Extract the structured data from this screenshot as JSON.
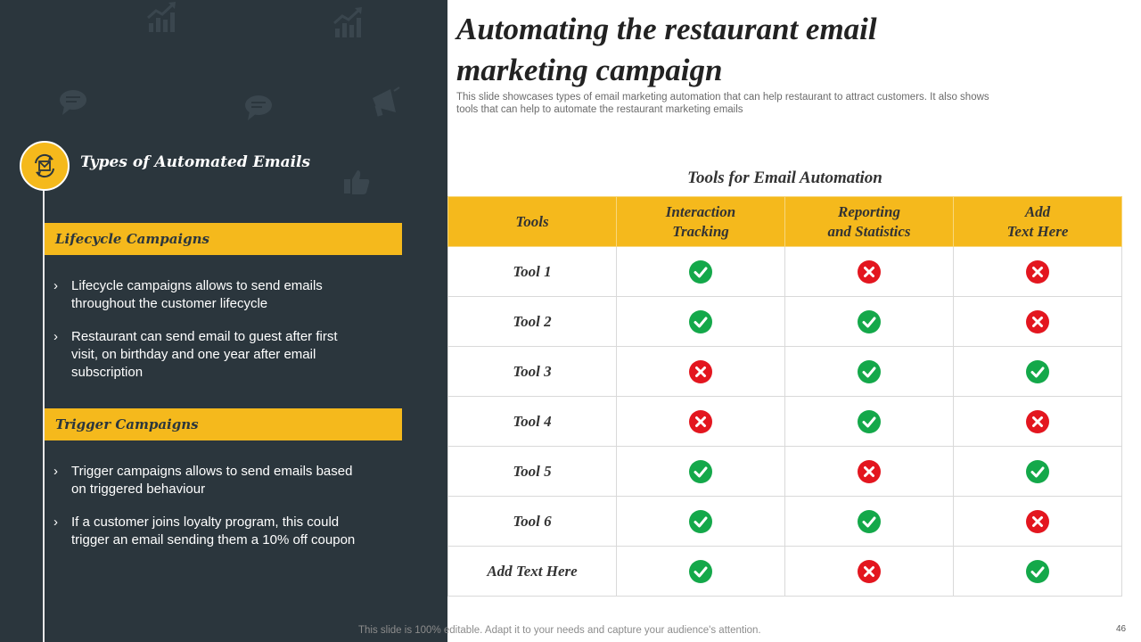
{
  "slide": {
    "title": "Automating the restaurant email marketing campaign",
    "subtitle": "This slide showcases types of email marketing automation that can help restaurant to attract customers. It also shows tools that can help to automate the restaurant marketing emails",
    "footer": "This slide is 100% editable. Adapt it to your needs and capture your audience's attention.",
    "page_number": "46"
  },
  "left_panel": {
    "section_title": "Types of Automated Emails",
    "section_icon": "email-automation-icon",
    "background_icons": [
      "growth-chart-icon",
      "growth-chart-icon",
      "speech-bubble-icon",
      "speech-bubble-icon",
      "megaphone-icon",
      "thumbs-up-icon"
    ],
    "lifecycle": {
      "heading": "Lifecycle Campaigns",
      "bullets": [
        "Lifecycle campaigns allows to send emails throughout  the customer lifecycle",
        "Restaurant can send email to guest after first visit, on birthday and one year after email subscription"
      ]
    },
    "trigger": {
      "heading": "Trigger Campaigns",
      "bullets": [
        "Trigger campaigns allows to send emails based on triggered behaviour",
        "If a customer joins loyalty  program, this could trigger an email sending them a 10% off coupon"
      ]
    }
  },
  "table": {
    "caption": "Tools for Email Automation",
    "headers": [
      "Tools",
      "Interaction\nTracking",
      "Reporting\nand Statistics",
      "Add\nText Here"
    ],
    "rows": [
      {
        "name": "Tool 1",
        "values": [
          true,
          false,
          false
        ]
      },
      {
        "name": "Tool 2",
        "values": [
          true,
          true,
          false
        ]
      },
      {
        "name": "Tool 3",
        "values": [
          false,
          true,
          true
        ]
      },
      {
        "name": "Tool 4",
        "values": [
          false,
          true,
          false
        ]
      },
      {
        "name": "Tool 5",
        "values": [
          true,
          false,
          true
        ]
      },
      {
        "name": "Tool 6",
        "values": [
          true,
          true,
          false
        ]
      },
      {
        "name": "Add Text Here",
        "values": [
          true,
          false,
          true
        ]
      }
    ],
    "icons": {
      "yes": "check-icon",
      "no": "cross-icon"
    }
  },
  "colors": {
    "panel_background": "#2b363d",
    "accent_yellow": "#f5b91c",
    "check_green": "#14a84a",
    "cross_red": "#e3161f"
  }
}
